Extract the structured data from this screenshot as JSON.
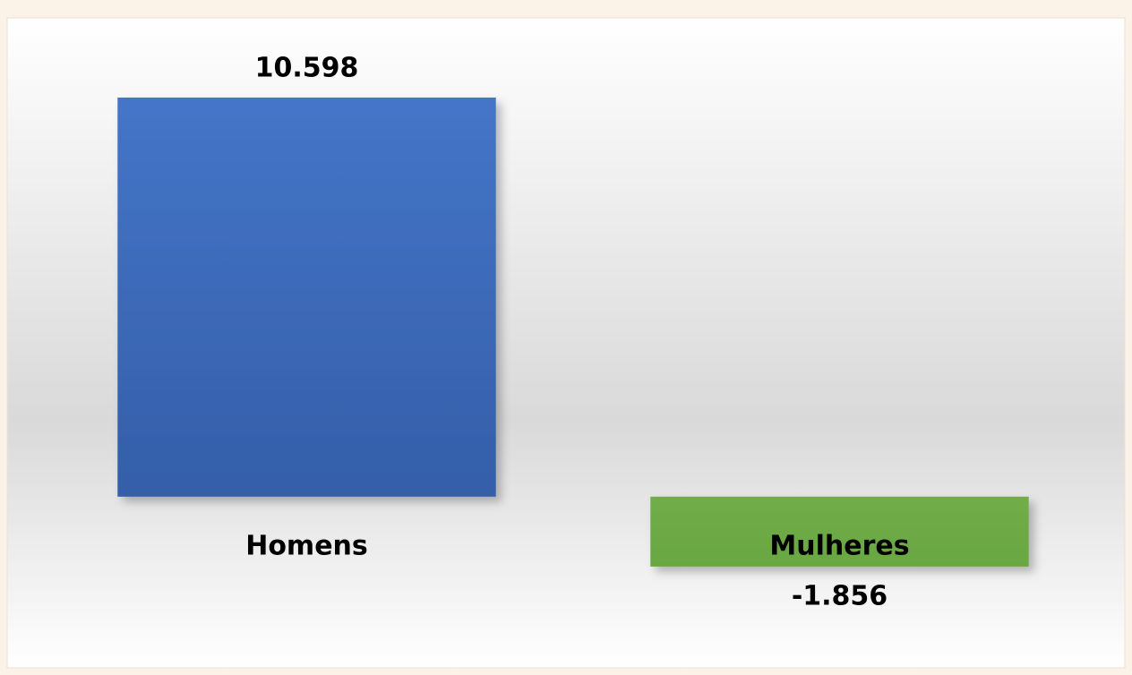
{
  "chart_data": {
    "type": "bar",
    "categories": [
      "Homens",
      "Mulheres"
    ],
    "values": [
      10598,
      -1856
    ],
    "value_labels": [
      "10.598",
      "-1.856"
    ],
    "colors": [
      "#4472c4",
      "#70ad47"
    ],
    "ylim": [
      -3000,
      12000
    ]
  }
}
